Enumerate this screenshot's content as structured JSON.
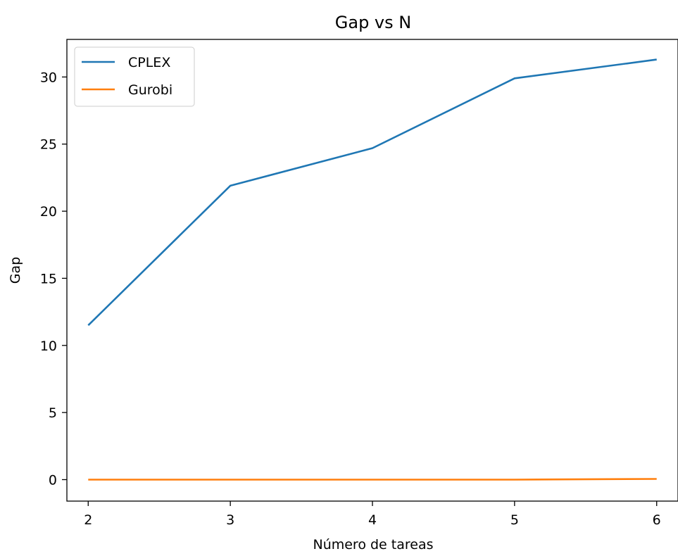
{
  "chart_data": {
    "type": "line",
    "title": "Gap vs N",
    "xlabel": "Número de tareas",
    "ylabel": "Gap",
    "x": [
      2,
      3,
      4,
      5,
      6
    ],
    "xlim": [
      1.85,
      6.15
    ],
    "ylim": [
      -1.6,
      32.8
    ],
    "xticks": [
      2,
      3,
      4,
      5,
      6
    ],
    "yticks": [
      0,
      5,
      10,
      15,
      20,
      25,
      30
    ],
    "grid": false,
    "legend_position": "top-left",
    "series": [
      {
        "name": "CPLEX",
        "color": "#1f77b4",
        "values": [
          11.5,
          21.9,
          24.7,
          29.9,
          31.3
        ]
      },
      {
        "name": "Gurobi",
        "color": "#ff7f0e",
        "values": [
          0.0,
          0.0,
          0.0,
          0.0,
          0.05
        ]
      }
    ]
  }
}
